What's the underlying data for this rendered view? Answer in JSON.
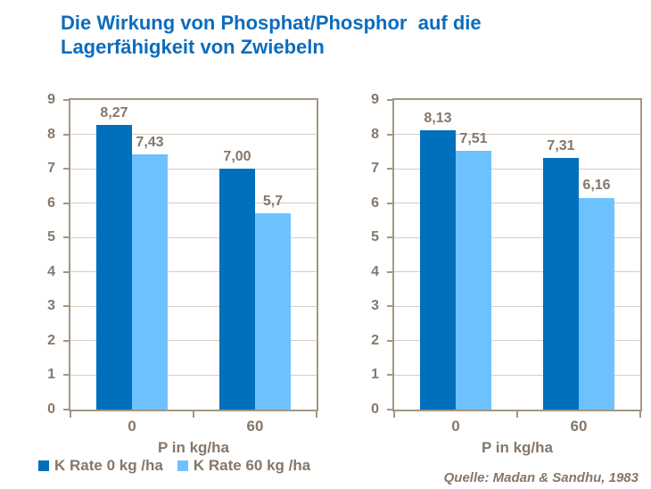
{
  "title": {
    "text": "Die Wirkung von Phosphat/Phosphor  auf die\nLagerfähigkeit von Zwiebeln"
  },
  "colors": {
    "title": "#0D6CBE",
    "chart_text": "#85776A",
    "plot_border": "#A29784",
    "gridline": "#D5CDBF",
    "bar_dark": "#0070BD",
    "bar_light": "#6EC1FF",
    "background": "#FFFFFF"
  },
  "legend": {
    "items": [
      {
        "label": "K Rate 0 kg /ha",
        "color": "#0070BD"
      },
      {
        "label": "K Rate 60 kg /ha",
        "color": "#6EC1FF"
      }
    ]
  },
  "source": "Quelle: Madan & Sandhu, 1983",
  "chart_data": [
    {
      "type": "bar",
      "categories": [
        "0",
        "60"
      ],
      "xlabel": "P in kg/ha",
      "ylabel": "",
      "ylim": [
        0,
        9
      ],
      "ytick_step": 1,
      "grid": true,
      "legend_position": "bottom-left",
      "series": [
        {
          "name": "K Rate 0 kg /ha",
          "color": "#0070BD",
          "values": [
            8.27,
            7.0
          ],
          "value_labels": [
            "8,27",
            "7,00"
          ]
        },
        {
          "name": "K Rate 60 kg /ha",
          "color": "#6EC1FF",
          "values": [
            7.43,
            5.7
          ],
          "value_labels": [
            "7,43",
            "5,7"
          ]
        }
      ]
    },
    {
      "type": "bar",
      "categories": [
        "0",
        "60"
      ],
      "xlabel": "P in kg/ha",
      "ylabel": "",
      "ylim": [
        0,
        9
      ],
      "ytick_step": 1,
      "grid": true,
      "legend_position": "none",
      "series": [
        {
          "name": "K Rate 0 kg /ha",
          "color": "#0070BD",
          "values": [
            8.13,
            7.31
          ],
          "value_labels": [
            "8,13",
            "7,31"
          ]
        },
        {
          "name": "K Rate 60 kg /ha",
          "color": "#6EC1FF",
          "values": [
            7.51,
            6.16
          ],
          "value_labels": [
            "7,51",
            "6,16"
          ]
        }
      ]
    }
  ]
}
